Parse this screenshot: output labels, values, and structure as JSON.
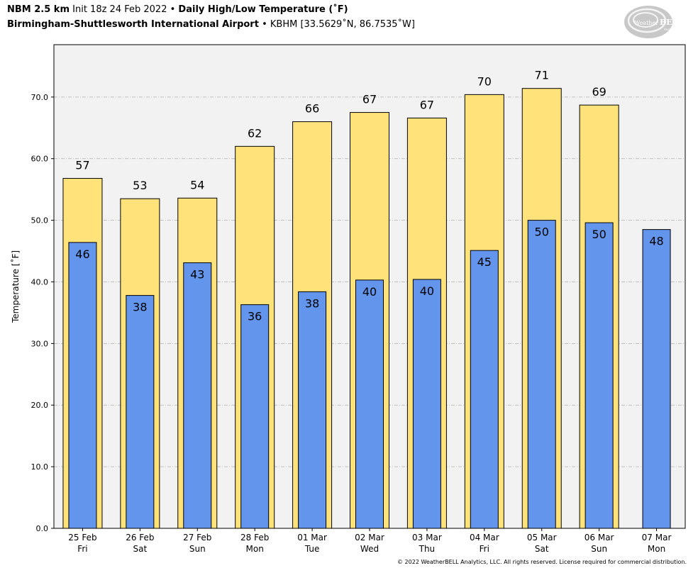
{
  "header": {
    "model": "NBM 2.5 km",
    "init": "Init 18z 24 Feb 2022",
    "bullet": "•",
    "product": "Daily High/Low Temperature (˚F)",
    "station_name": "Birmingham-Shuttlesworth International Airport",
    "station_info": "KBHM [33.5629˚N, 86.7535˚W]"
  },
  "logo": {
    "text_small": "Weather",
    "text_big": "BELL",
    "sub": "Analytics LLC"
  },
  "copyright": "© 2022 WeatherBELL Analytics, LLC. All rights reserved. License required for commercial distribution.",
  "colors": {
    "high_fill": "#FFE37A",
    "low_fill": "#6495ED",
    "plot_bg": "#F2F2F2",
    "grid": "#B0B0B0"
  },
  "chart_data": {
    "type": "bar",
    "title": "Daily High/Low Temperature (˚F)",
    "ylabel": "Temperature [˚F]",
    "xlabel": "",
    "ylim": [
      0,
      78.5
    ],
    "yticks": [
      "0.0",
      "10.0",
      "20.0",
      "30.0",
      "40.0",
      "50.0",
      "60.0",
      "70.0"
    ],
    "grid": true,
    "categories": [
      {
        "date": "25 Feb",
        "day": "Fri"
      },
      {
        "date": "26 Feb",
        "day": "Sat"
      },
      {
        "date": "27 Feb",
        "day": "Sun"
      },
      {
        "date": "28 Feb",
        "day": "Mon"
      },
      {
        "date": "01 Mar",
        "day": "Tue"
      },
      {
        "date": "02 Mar",
        "day": "Wed"
      },
      {
        "date": "03 Mar",
        "day": "Thu"
      },
      {
        "date": "04 Mar",
        "day": "Fri"
      },
      {
        "date": "05 Mar",
        "day": "Sat"
      },
      {
        "date": "06 Mar",
        "day": "Sun"
      },
      {
        "date": "07 Mar",
        "day": "Mon"
      }
    ],
    "series": [
      {
        "kind": "high",
        "values": [
          56.8,
          53.5,
          53.6,
          62.0,
          66.0,
          67.5,
          66.6,
          70.4,
          71.4,
          68.7,
          null
        ],
        "labels": [
          "57",
          "53",
          "54",
          "62",
          "66",
          "67",
          "67",
          "70",
          "71",
          "69",
          null
        ]
      },
      {
        "kind": "low",
        "values": [
          46.4,
          37.8,
          43.1,
          36.3,
          38.4,
          40.3,
          40.4,
          45.1,
          50.0,
          49.6,
          48.5
        ],
        "labels": [
          "46",
          "38",
          "43",
          "36",
          "38",
          "40",
          "40",
          "45",
          "50",
          "50",
          "48"
        ]
      }
    ]
  }
}
